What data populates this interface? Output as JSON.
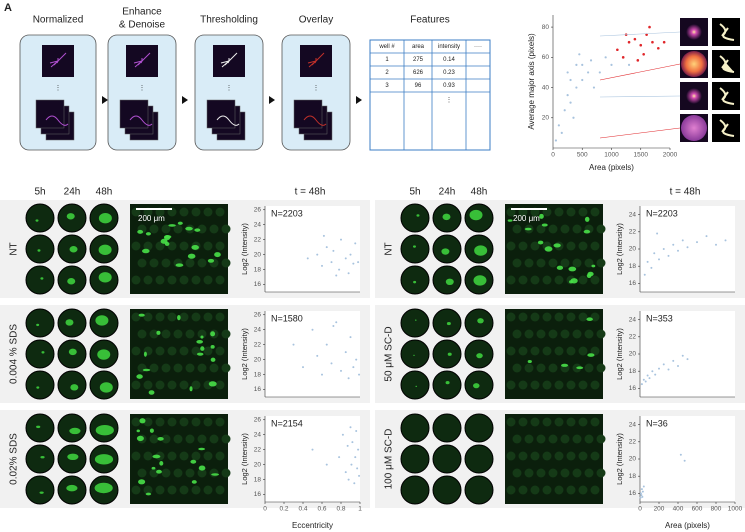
{
  "panel_label": "A",
  "pipeline": {
    "steps": [
      [
        "Normalized"
      ],
      [
        "Enhance",
        "& Denoise"
      ],
      [
        "Thresholding"
      ],
      [
        "Overlay"
      ]
    ]
  },
  "features": {
    "title": "Features",
    "columns": [
      "well #",
      "area",
      "intensity",
      "····"
    ],
    "rows": [
      [
        1,
        275,
        0.14
      ],
      [
        2,
        626,
        0.23
      ],
      [
        3,
        96,
        0.93
      ]
    ],
    "continuation": "⋮"
  },
  "morphology": {
    "xlabel": "Area (pixels)",
    "ylabel": "Average major axis (pixels)",
    "xlim": [
      0,
      2000
    ],
    "ylim": [
      0,
      88
    ],
    "xticks": [
      0,
      500,
      1000,
      1500,
      2000
    ],
    "yticks": [
      20,
      40,
      60,
      80
    ],
    "series": [
      {
        "color": "#a8c3de",
        "x": [
          50,
          100,
          150,
          200,
          250,
          300,
          300,
          350,
          400,
          400,
          500,
          500,
          600,
          700,
          800,
          900,
          1000,
          1200,
          1300,
          450,
          250,
          650
        ],
        "y": [
          5,
          15,
          10,
          25,
          35,
          30,
          45,
          20,
          40,
          55,
          45,
          55,
          50,
          40,
          50,
          60,
          55,
          60,
          55,
          62,
          50,
          58
        ]
      },
      {
        "color": "#e0262a",
        "x": [
          1100,
          1200,
          1250,
          1300,
          1400,
          1450,
          1500,
          1550,
          1600,
          1650,
          1700,
          1800,
          1900
        ],
        "y": [
          65,
          60,
          75,
          70,
          72,
          58,
          68,
          62,
          75,
          80,
          70,
          66,
          70
        ]
      }
    ]
  },
  "groups": [
    {
      "time_headers": [
        "5h",
        "24h",
        "48h"
      ],
      "snapshot": "t = 48h",
      "scale_bar": "200 μm",
      "color": "#a8c3de",
      "xlabel": "Eccentricity",
      "xlim": [
        0,
        1
      ],
      "xticks": [
        0,
        0.2,
        0.4,
        0.6,
        0.8,
        1
      ],
      "rows": [
        {
          "label": "NT",
          "n": "N=2203",
          "ylabel": "Log2 (Intensity)",
          "ylim": [
            15,
            26.5
          ],
          "yticks": [
            16,
            18,
            20,
            22,
            24,
            26
          ],
          "x": [
            0.45,
            0.55,
            0.6,
            0.65,
            0.7,
            0.72,
            0.78,
            0.8,
            0.85,
            0.88,
            0.9,
            0.93,
            0.95,
            0.98,
            0.62,
            0.75
          ],
          "y": [
            19.5,
            20,
            18.5,
            21,
            19,
            20.5,
            18,
            22,
            19.5,
            17.5,
            20,
            18.8,
            21.5,
            19,
            22.5,
            17.2
          ]
        },
        {
          "label": "0.004 % SDS",
          "n": "N=1580",
          "ylabel": "Log2 (Intensity)",
          "ylim": [
            15,
            26.5
          ],
          "yticks": [
            16,
            18,
            20,
            22,
            24,
            26
          ],
          "x": [
            0.3,
            0.4,
            0.5,
            0.55,
            0.6,
            0.65,
            0.7,
            0.75,
            0.8,
            0.85,
            0.88,
            0.9,
            0.93,
            0.96,
            0.99,
            0.72
          ],
          "y": [
            22,
            19,
            24,
            20.5,
            18,
            22,
            19.5,
            25,
            18.5,
            21,
            17.5,
            23,
            19,
            20,
            18,
            24.5
          ]
        },
        {
          "label": "0.02% SDS",
          "n": "N=2154",
          "ylabel": "Log2 (Intensity)",
          "ylim": [
            15,
            26.5
          ],
          "yticks": [
            16,
            18,
            20,
            22,
            24,
            26
          ],
          "x": [
            0.5,
            0.65,
            0.78,
            0.82,
            0.85,
            0.87,
            0.88,
            0.9,
            0.91,
            0.92,
            0.94,
            0.95,
            0.96,
            0.97,
            0.98,
            0.99
          ],
          "y": [
            22,
            20,
            21,
            24,
            19,
            22.5,
            18,
            25,
            20,
            23,
            17.5,
            21,
            24.5,
            19.5,
            22,
            18.5
          ]
        }
      ]
    },
    {
      "time_headers": [
        "5h",
        "24h",
        "48h"
      ],
      "snapshot": "t = 48h",
      "scale_bar": "200 μm",
      "color": "#a8c3de",
      "xlabel": "Area (pixels)",
      "xlim": [
        0,
        1000
      ],
      "xticks": [
        0,
        200,
        400,
        600,
        800,
        1000
      ],
      "rows": [
        {
          "label": "NT",
          "n": "N=2203",
          "ylabel": "Log2 (Intensity)",
          "ylim": [
            15,
            25
          ],
          "yticks": [
            16,
            18,
            20,
            22,
            24
          ],
          "x": [
            50,
            80,
            120,
            150,
            200,
            250,
            300,
            350,
            400,
            450,
            500,
            600,
            700,
            800,
            900,
            180
          ],
          "y": [
            17,
            18.5,
            17.8,
            19.5,
            18.8,
            20,
            19.2,
            20.5,
            19.8,
            21,
            20.2,
            20.8,
            21.5,
            20.5,
            21,
            21.8
          ]
        },
        {
          "label": "50 μM SC-D",
          "n": "N=353",
          "ylabel": "Log2 (Intensity)",
          "ylim": [
            15,
            25
          ],
          "yticks": [
            16,
            18,
            20,
            22,
            24
          ],
          "x": [
            20,
            40,
            60,
            80,
            100,
            130,
            160,
            200,
            250,
            300,
            350,
            400,
            450,
            500
          ],
          "y": [
            16.5,
            17,
            16.8,
            17.5,
            17.2,
            18,
            17.6,
            18.3,
            18.8,
            18.2,
            19.2,
            18.6,
            19.8,
            19.4
          ]
        },
        {
          "label": "100 μM SC-D",
          "n": "N=36",
          "ylabel": "Log2 (Intensity)",
          "ylim": [
            15,
            25
          ],
          "yticks": [
            16,
            18,
            20,
            22,
            24
          ],
          "x": [
            5,
            10,
            15,
            20,
            25,
            30,
            40,
            430,
            470
          ],
          "y": [
            15.5,
            16,
            15.8,
            16.5,
            15.6,
            16.2,
            16.8,
            20.5,
            19.8
          ]
        }
      ]
    }
  ]
}
